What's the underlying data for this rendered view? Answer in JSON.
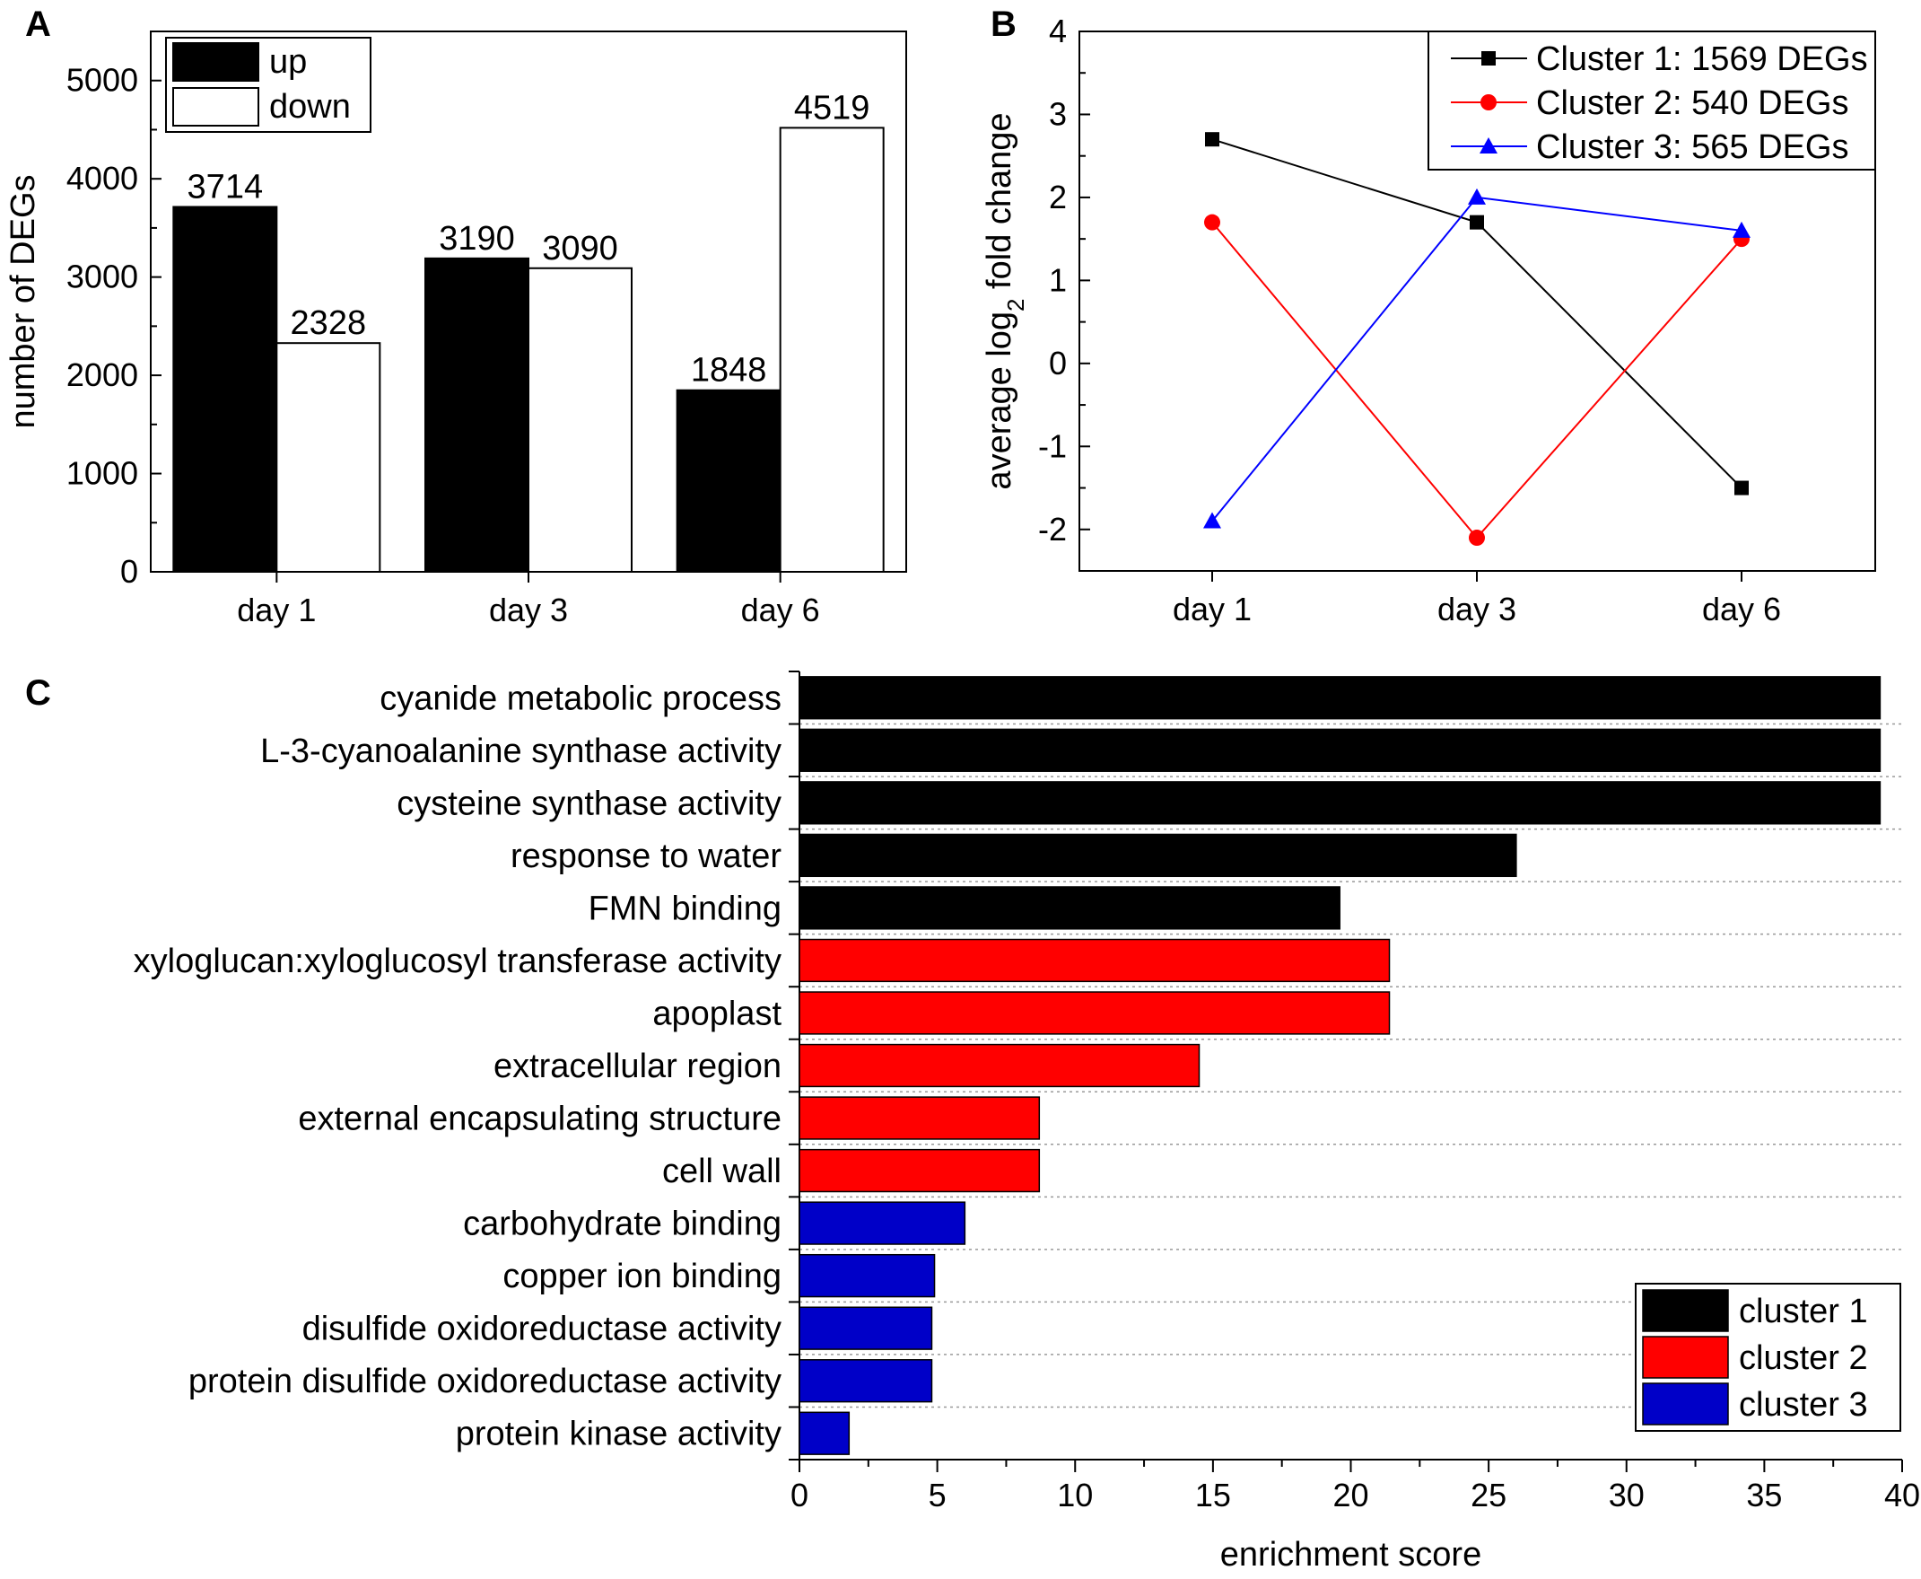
{
  "chart_data": [
    {
      "panel": "A",
      "type": "bar",
      "categories": [
        "day 1",
        "day 3",
        "day 6"
      ],
      "series": [
        {
          "name": "up",
          "values": [
            3714,
            3190,
            1848
          ],
          "color": "#000000"
        },
        {
          "name": "down",
          "values": [
            2328,
            3090,
            4519
          ],
          "color": "#ffffff"
        }
      ],
      "xlabel": "",
      "ylabel": "number of DEGs",
      "ylim": [
        0,
        5500
      ],
      "yticks": [
        0,
        1000,
        2000,
        3000,
        4000,
        5000
      ],
      "legend": "top-left"
    },
    {
      "panel": "B",
      "type": "line",
      "categories": [
        "day 1",
        "day 3",
        "day 6"
      ],
      "series": [
        {
          "name": "Cluster 1: 1569 DEGs",
          "values": [
            2.7,
            1.7,
            -1.5
          ],
          "color": "#000000",
          "marker": "square"
        },
        {
          "name": "Cluster 2: 540 DEGs",
          "values": [
            1.7,
            -2.1,
            1.5
          ],
          "color": "#ff0000",
          "marker": "circle"
        },
        {
          "name": "Cluster 3: 565 DEGs",
          "values": [
            -1.9,
            2.0,
            1.6
          ],
          "color": "#0000ff",
          "marker": "triangle"
        }
      ],
      "ylabel_pre": "average log",
      "ylabel_sub": "2",
      "ylabel_post": " fold change",
      "ylim": [
        -2.5,
        4
      ],
      "yticks": [
        -2,
        -1,
        0,
        1,
        2,
        3,
        4
      ],
      "legend": "top-right"
    },
    {
      "panel": "C",
      "type": "bar",
      "orientation": "horizontal",
      "categories": [
        "cyanide metabolic process",
        "L-3-cyanoalanine synthase activity",
        "cysteine synthase activity",
        "response to water",
        "FMN binding",
        "xyloglucan:xyloglucosyl transferase activity",
        "apoplast",
        "extracellular region",
        "external encapsulating structure",
        "cell wall",
        "carbohydrate binding",
        "copper ion binding",
        "disulfide oxidoreductase activity",
        "protein disulfide oxidoreductase activity",
        "protein kinase activity"
      ],
      "values": [
        39.2,
        39.2,
        39.2,
        26.0,
        19.6,
        21.4,
        21.4,
        14.5,
        8.7,
        8.7,
        6.0,
        4.9,
        4.8,
        4.8,
        1.8
      ],
      "groups": [
        1,
        1,
        1,
        1,
        1,
        2,
        2,
        2,
        2,
        2,
        3,
        3,
        3,
        3,
        3
      ],
      "legend_items": [
        {
          "name": "cluster 1",
          "color": "#000000"
        },
        {
          "name": "cluster 2",
          "color": "#ff0000"
        },
        {
          "name": "cluster 3",
          "color": "#0000c8"
        }
      ],
      "xlabel": "enrichment score",
      "xlim": [
        0,
        40
      ],
      "xticks": [
        0,
        5,
        10,
        15,
        20,
        25,
        30,
        35,
        40
      ],
      "legend": "bottom-right"
    }
  ]
}
